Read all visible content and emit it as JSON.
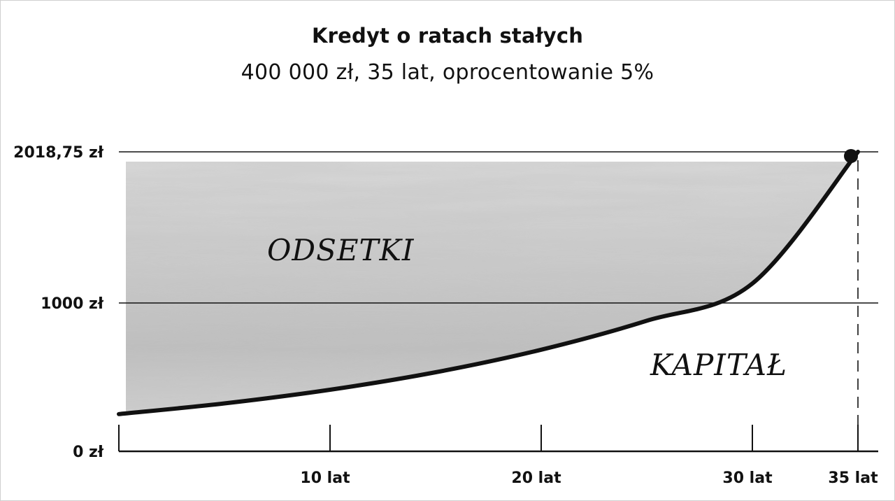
{
  "chart_data": {
    "type": "area",
    "title": "Kredyt o ratach stałych",
    "subtitle": "400 000 zł, 35 lat, oprocentowanie 5%",
    "xlabel": "",
    "ylabel": "",
    "xlim": [
      0,
      35
    ],
    "ylim": [
      0,
      2018.75
    ],
    "x_ticks": [
      {
        "value": 10,
        "label": "10 lat"
      },
      {
        "value": 20,
        "label": "20 lat"
      },
      {
        "value": 30,
        "label": "30 lat"
      },
      {
        "value": 35,
        "label": "35 lat"
      }
    ],
    "y_ticks": [
      {
        "value": 0,
        "label": "0 zł"
      },
      {
        "value": 1000,
        "label": "1000 zł"
      },
      {
        "value": 2018.75,
        "label": "2018,75 zł"
      }
    ],
    "installment": 2018.75,
    "series": [
      {
        "x": [
          0,
          5,
          10,
          15,
          20,
          25,
          30,
          35
        ],
        "values": [
          251,
          323,
          415,
          533,
          685,
          880,
          1131,
          2018.75
        ]
      }
    ],
    "regions": [
      {
        "label": "ODSETKI",
        "position": "upper-left"
      },
      {
        "label": "KAPITAŁ",
        "position": "lower-right"
      }
    ],
    "grid": true,
    "colors": {
      "interest_fill": "#c8c8c8",
      "curve": "#111111",
      "grid": "#111111"
    }
  }
}
